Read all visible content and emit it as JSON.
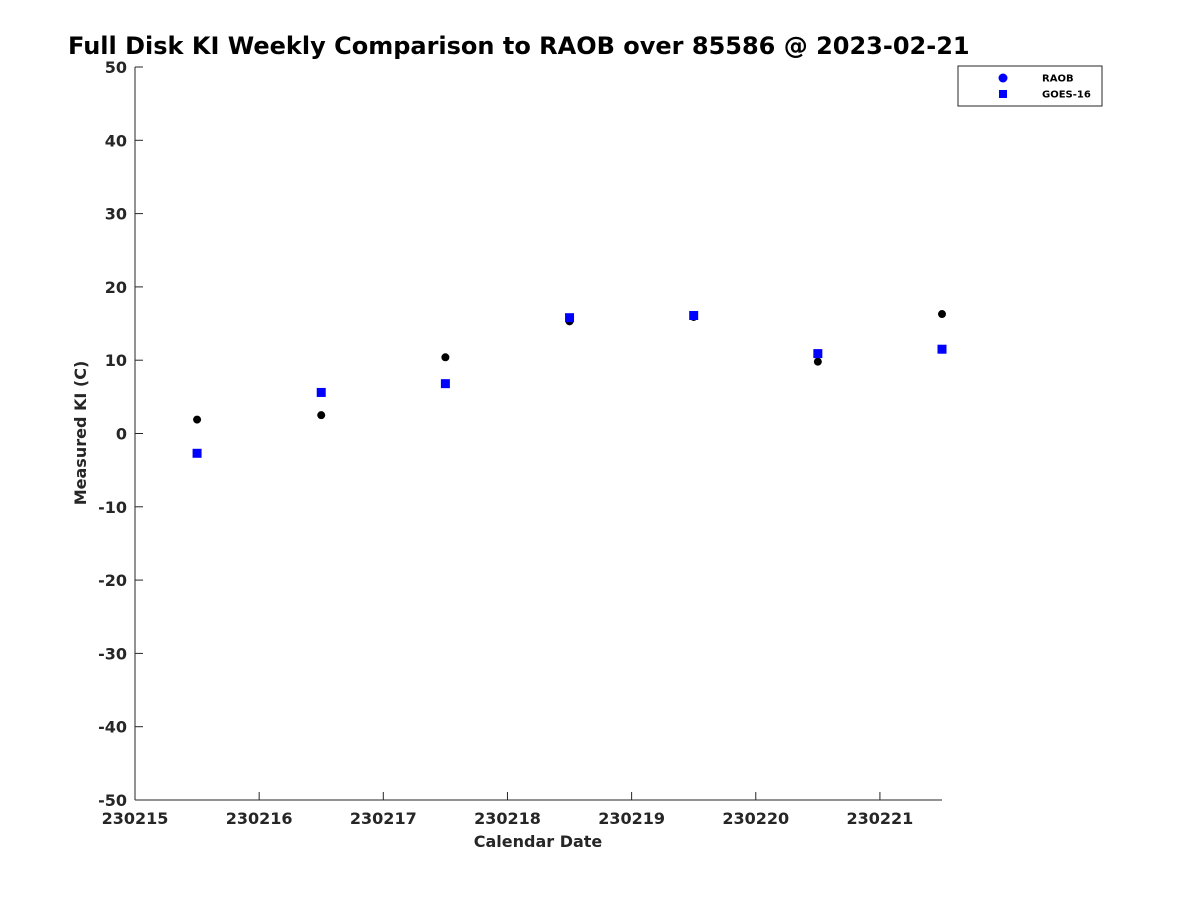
{
  "chart_data": {
    "type": "scatter",
    "title": "Full Disk KI Weekly Comparison to RAOB over 85586 @ 2023-02-21",
    "xlabel": "Calendar Date",
    "ylabel": "Measured KI (C)",
    "xlim": [
      230215,
      230221.5
    ],
    "ylim": [
      -50,
      50
    ],
    "x_ticks": [
      {
        "value": 230215,
        "label": "230215"
      },
      {
        "value": 230216,
        "label": "230216"
      },
      {
        "value": 230217,
        "label": "230217"
      },
      {
        "value": 230218,
        "label": "230218"
      },
      {
        "value": 230219,
        "label": "230219"
      },
      {
        "value": 230220,
        "label": "230220"
      },
      {
        "value": 230221,
        "label": "230221"
      }
    ],
    "y_ticks": [
      {
        "value": 50,
        "label": "50"
      },
      {
        "value": 40,
        "label": "40"
      },
      {
        "value": 30,
        "label": "30"
      },
      {
        "value": 20,
        "label": "20"
      },
      {
        "value": 10,
        "label": "10"
      },
      {
        "value": 0,
        "label": "0"
      },
      {
        "value": -10,
        "label": "-10"
      },
      {
        "value": -20,
        "label": "-20"
      },
      {
        "value": -30,
        "label": "-30"
      },
      {
        "value": -40,
        "label": "-40"
      },
      {
        "value": -50,
        "label": "-50"
      }
    ],
    "grid": false,
    "legend_position": "top-right",
    "series": [
      {
        "name": "RAOB",
        "marker": "circle",
        "color": "#000000",
        "legend_color": "#0000ff",
        "points": [
          {
            "x": 230215.5,
            "y": 1.9
          },
          {
            "x": 230216.5,
            "y": 2.5
          },
          {
            "x": 230217.5,
            "y": 10.4
          },
          {
            "x": 230218.5,
            "y": 15.3
          },
          {
            "x": 230219.5,
            "y": 15.9
          },
          {
            "x": 230220.5,
            "y": 9.8
          },
          {
            "x": 230221.5,
            "y": 16.3
          }
        ]
      },
      {
        "name": "GOES-16",
        "marker": "square",
        "color": "#0000ff",
        "legend_color": "#0000ff",
        "points": [
          {
            "x": 230215.5,
            "y": -2.7
          },
          {
            "x": 230216.5,
            "y": 5.6
          },
          {
            "x": 230217.5,
            "y": 6.8
          },
          {
            "x": 230218.5,
            "y": 15.8
          },
          {
            "x": 230219.5,
            "y": 16.1
          },
          {
            "x": 230220.5,
            "y": 10.9
          },
          {
            "x": 230221.5,
            "y": 11.5
          }
        ]
      }
    ]
  }
}
